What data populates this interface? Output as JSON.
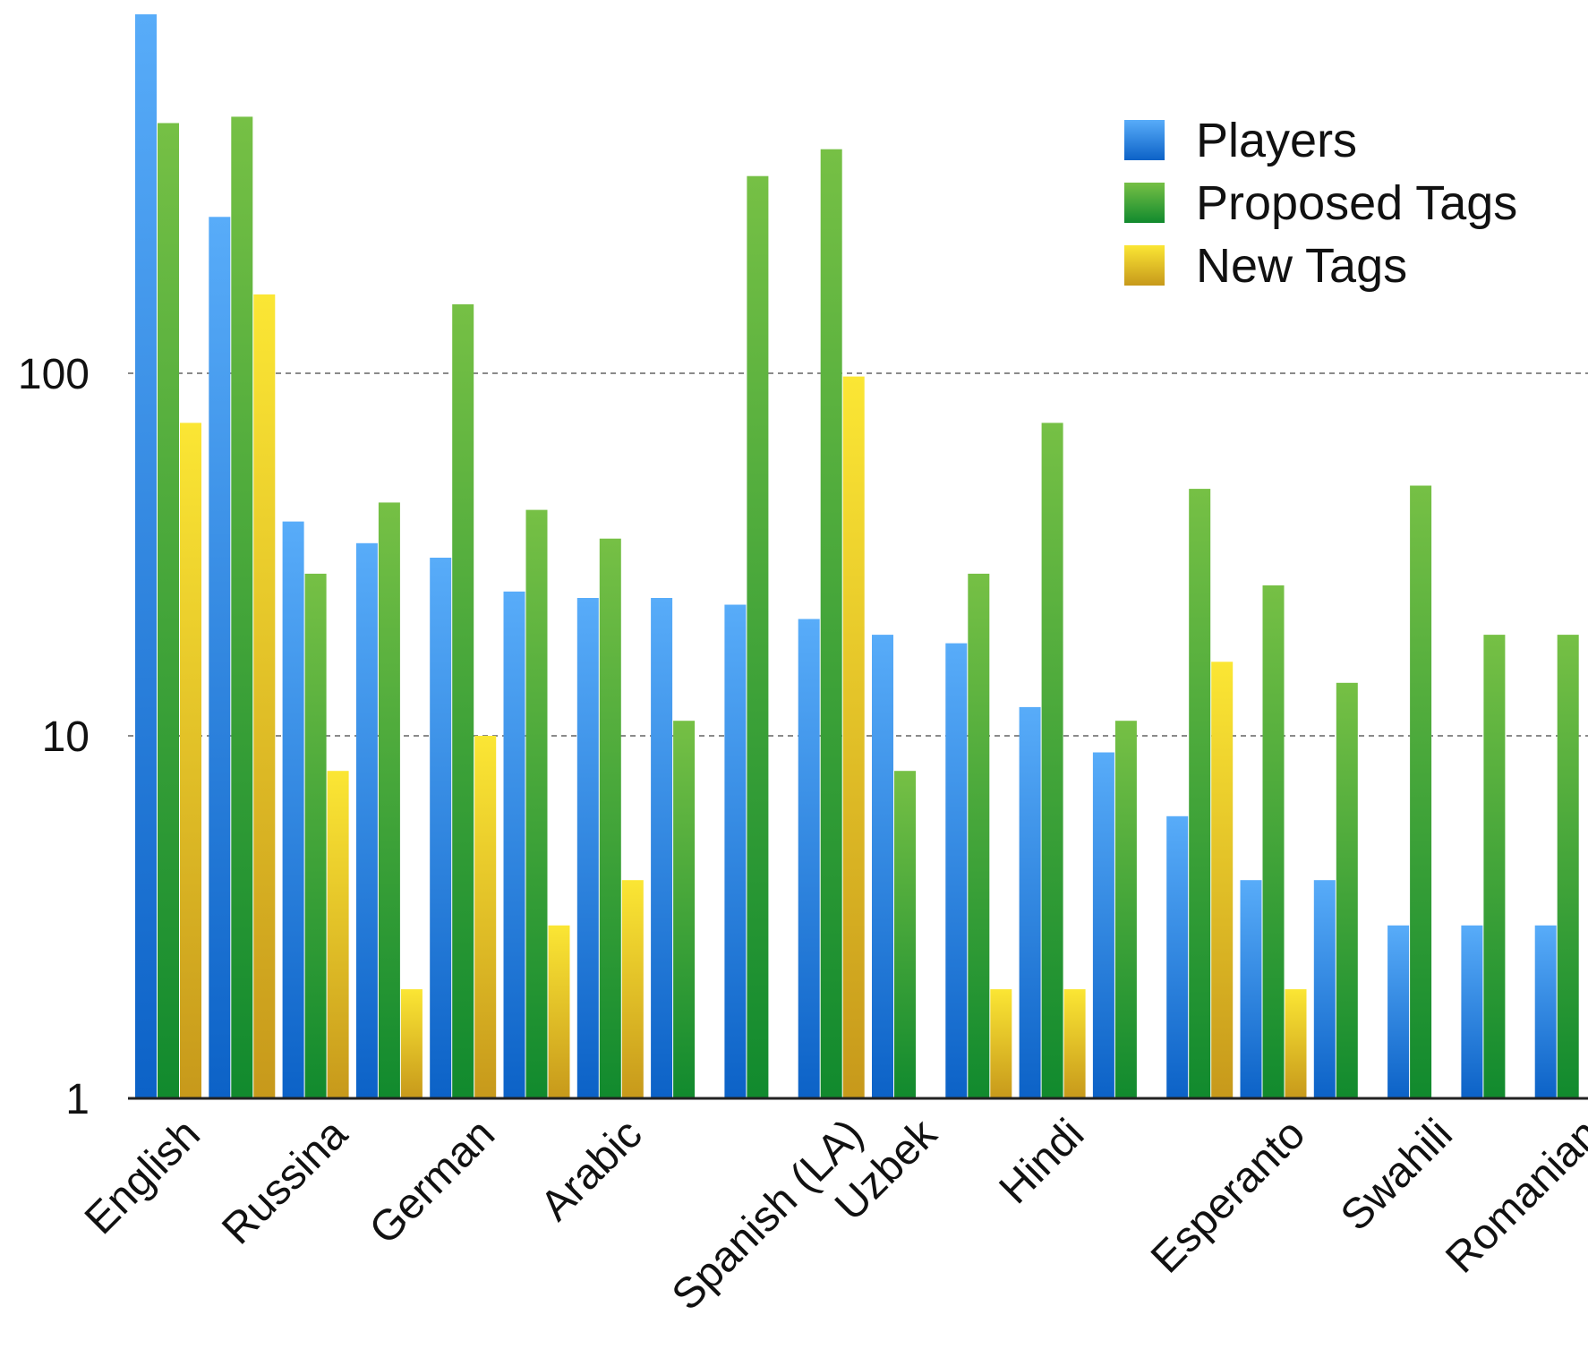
{
  "chart_data": {
    "type": "bar",
    "yscale": "log",
    "ylim": [
      1,
      1000
    ],
    "yticks": [
      "1",
      "10",
      "100"
    ],
    "ytick_values": [
      1,
      10,
      100
    ],
    "grid": "horizontal dashed at 10 and 100",
    "legend_position": "top-right",
    "category_labels": [
      "English",
      "Russina",
      "German",
      "Arabic",
      "Spanish (LA)",
      "Uzbek",
      "Hindi",
      "Esperanto",
      "Swahili",
      "Romanian"
    ],
    "categories": [
      "English",
      "",
      "Russina",
      "",
      "German",
      "",
      "Arabic",
      "",
      "",
      "Spanish (LA)",
      "Uzbek",
      "",
      "Hindi",
      "",
      "",
      "Esperanto",
      "",
      "Swahili",
      "",
      "Romanian",
      ""
    ],
    "series": [
      {
        "name": "Players",
        "color": "#2f8fe8",
        "values": [
          1000,
          270,
          39,
          34,
          31,
          25,
          24,
          24,
          23,
          21,
          19,
          18,
          12,
          9,
          6,
          4,
          4,
          3,
          3,
          3,
          null
        ]
      },
      {
        "name": "Proposed Tags",
        "color": "#2fa33a",
        "values": [
          490,
          510,
          28,
          44,
          155,
          42,
          35,
          11,
          350,
          415,
          8,
          28,
          73,
          11,
          48,
          26,
          14,
          49,
          19,
          19,
          null
        ]
      },
      {
        "name": "New Tags",
        "color": "#f0cf1f",
        "values": [
          73,
          165,
          8,
          2,
          10,
          3,
          4,
          null,
          null,
          98,
          null,
          2,
          2,
          null,
          16,
          2,
          null,
          null,
          null,
          null,
          null
        ]
      }
    ]
  }
}
